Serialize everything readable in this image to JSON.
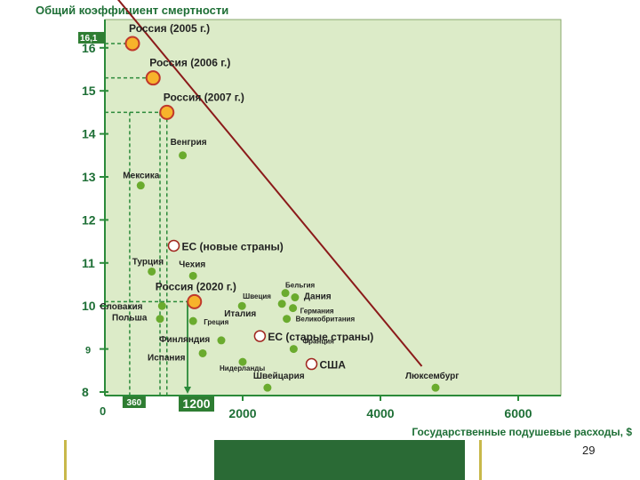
{
  "colors": {
    "plot_bg": "#dcebc8",
    "plot_border": "#8aa86e",
    "axis": "#2b8a3a",
    "axis_label": "#1e6f36",
    "trend": "#8b1a1a",
    "point": "#6aab2e",
    "russia_fill": "#f7b32b",
    "russia_stroke": "#c0392b",
    "circle_stroke": "#a0261f",
    "tag_bg": "#2e7d32",
    "text_dark": "#222222"
  },
  "page": {
    "number": "29"
  },
  "chart_data": {
    "type": "scatter",
    "title": "Общий коэффициент смертности",
    "xlabel": "Государственные подушевые расходы, $",
    "ylabel": "",
    "xlim": [
      0,
      6300
    ],
    "ylim": [
      8,
      16.7
    ],
    "x_ticks": [
      2000,
      4000,
      6000
    ],
    "x_tick_labels": [
      "2000",
      "4000",
      "6000"
    ],
    "x_origin_label": "0",
    "y_ticks": [
      8,
      9,
      10,
      11,
      12,
      13,
      14,
      15,
      16
    ],
    "y_tick_labels": [
      "8",
      "9",
      "10",
      "11",
      "12",
      "13",
      "14",
      "15",
      "16"
    ],
    "y_special": {
      "value": 16.1,
      "label": "16,1"
    },
    "x_special": [
      {
        "value": 360,
        "label": "360"
      },
      {
        "value": 1200,
        "label": "1200"
      }
    ],
    "trend_line": [
      {
        "x": 100,
        "y": 17.3
      },
      {
        "x": 4600,
        "y": 8.6
      }
    ],
    "russia_points": [
      {
        "label": "Россия (2005 г.)",
        "x": 400,
        "y": 16.1
      },
      {
        "label": "Россия (2006 г.)",
        "x": 700,
        "y": 15.3
      },
      {
        "label": "Россия (2007 г.)",
        "x": 900,
        "y": 14.5
      },
      {
        "label": "Россия (2020 г.)",
        "x": 1300,
        "y": 10.1
      }
    ],
    "hollow_points": [
      {
        "label": "ЕС (новые страны)",
        "x": 1000,
        "y": 11.4
      },
      {
        "label": "ЕС (старые страны)",
        "x": 2250,
        "y": 9.3
      },
      {
        "label": "США",
        "x": 3000,
        "y": 8.65
      }
    ],
    "countries": [
      {
        "label": "Венгрия",
        "x": 1130,
        "y": 13.5
      },
      {
        "label": "Мексика",
        "x": 520,
        "y": 12.8
      },
      {
        "label": "Турция",
        "x": 680,
        "y": 10.8
      },
      {
        "label": "Чехия",
        "x": 1280,
        "y": 10.7
      },
      {
        "label": "Словакия",
        "x": 830,
        "y": 10.0
      },
      {
        "label": "Польша",
        "x": 800,
        "y": 9.7
      },
      {
        "label": "Италия",
        "x": 1990,
        "y": 10.0
      },
      {
        "label": "Греция",
        "x": 1280,
        "y": 9.65
      },
      {
        "label": "Финляндия",
        "x": 1690,
        "y": 9.2
      },
      {
        "label": "Испания",
        "x": 1420,
        "y": 8.9
      },
      {
        "label": "Нидерланды",
        "x": 2000,
        "y": 8.7
      },
      {
        "label": "Швейцария",
        "x": 2360,
        "y": 8.1
      },
      {
        "label": "Бельгия",
        "x": 2620,
        "y": 10.3
      },
      {
        "label": "Швеция",
        "x": 2570,
        "y": 10.05
      },
      {
        "label": "Дания",
        "x": 2760,
        "y": 10.2
      },
      {
        "label": "Германия",
        "x": 2730,
        "y": 9.95
      },
      {
        "label": "Великобритания",
        "x": 2640,
        "y": 9.7
      },
      {
        "label": "Франция",
        "x": 2740,
        "y": 9.0
      },
      {
        "label": "Люксембург",
        "x": 4800,
        "y": 8.1
      }
    ]
  }
}
